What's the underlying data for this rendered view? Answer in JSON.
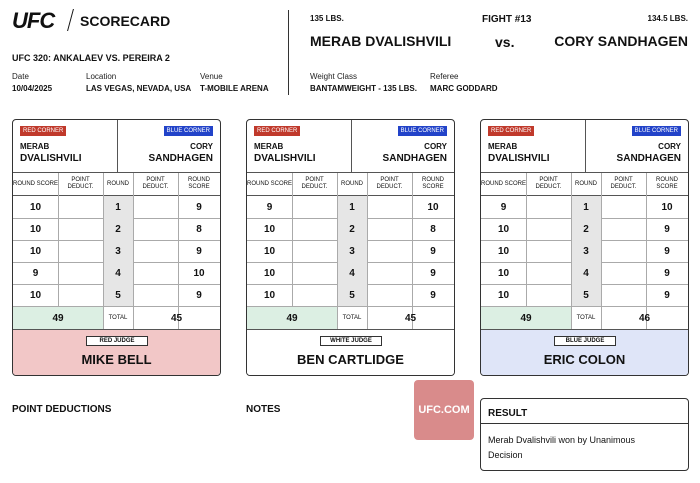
{
  "header": {
    "logo": "UFC",
    "title": "SCORECARD",
    "event": "UFC 320: ANKALAEV VS. PEREIRA 2",
    "fields": [
      {
        "label": "Date",
        "value": "10/04/2025"
      },
      {
        "label": "Location",
        "value": "LAS VEGAS, NEVADA, USA"
      },
      {
        "label": "Venue",
        "value": "T-MOBILE ARENA"
      }
    ]
  },
  "fight": {
    "number": "FIGHT #13",
    "vs": "vs.",
    "red": {
      "weight": "135 LBS.",
      "name": "MERAB DVALISHVILI"
    },
    "blue": {
      "weight": "134.5 LBS.",
      "name": "CORY SANDHAGEN"
    },
    "fields": [
      {
        "label": "Weight Class",
        "value": "BANTAMWEIGHT - 135 LBS."
      },
      {
        "label": "Referee",
        "value": "MARC GODDARD"
      }
    ]
  },
  "card_labels": {
    "red_corner": "RED CORNER",
    "blue_corner": "BLUE CORNER",
    "red_name": [
      "MERAB",
      "DVALISHVILI"
    ],
    "blue_name": [
      "CORY",
      "SANDHAGEN"
    ],
    "columns": [
      "ROUND SCORE",
      "POINT DEDUCT.",
      "ROUND",
      "POINT DEDUCT.",
      "ROUND SCORE"
    ],
    "total": "TOTAL"
  },
  "cards": [
    {
      "rounds": [
        [
          10,
          1,
          9
        ],
        [
          10,
          2,
          8
        ],
        [
          10,
          3,
          9
        ],
        [
          9,
          4,
          10
        ],
        [
          10,
          5,
          9
        ]
      ],
      "red_total": 49,
      "blue_total": 45,
      "judge_role": "RED JUDGE",
      "judge_name": "MIKE BELL"
    },
    {
      "rounds": [
        [
          9,
          1,
          10
        ],
        [
          10,
          2,
          8
        ],
        [
          10,
          3,
          9
        ],
        [
          10,
          4,
          9
        ],
        [
          10,
          5,
          9
        ]
      ],
      "red_total": 49,
      "blue_total": 45,
      "judge_role": "WHITE JUDGE",
      "judge_name": "BEN CARTLIDGE"
    },
    {
      "rounds": [
        [
          9,
          1,
          10
        ],
        [
          10,
          2,
          9
        ],
        [
          10,
          3,
          9
        ],
        [
          10,
          4,
          9
        ],
        [
          10,
          5,
          9
        ]
      ],
      "red_total": 49,
      "blue_total": 46,
      "judge_role": "BLUE JUDGE",
      "judge_name": "ERIC COLON"
    }
  ],
  "footer": {
    "deductions": "POINT DEDUCTIONS",
    "notes": "NOTES",
    "site": "UFC.COM",
    "result_title": "RESULT",
    "result": "Merab Dvalishvili won by Unanimous Decision"
  }
}
